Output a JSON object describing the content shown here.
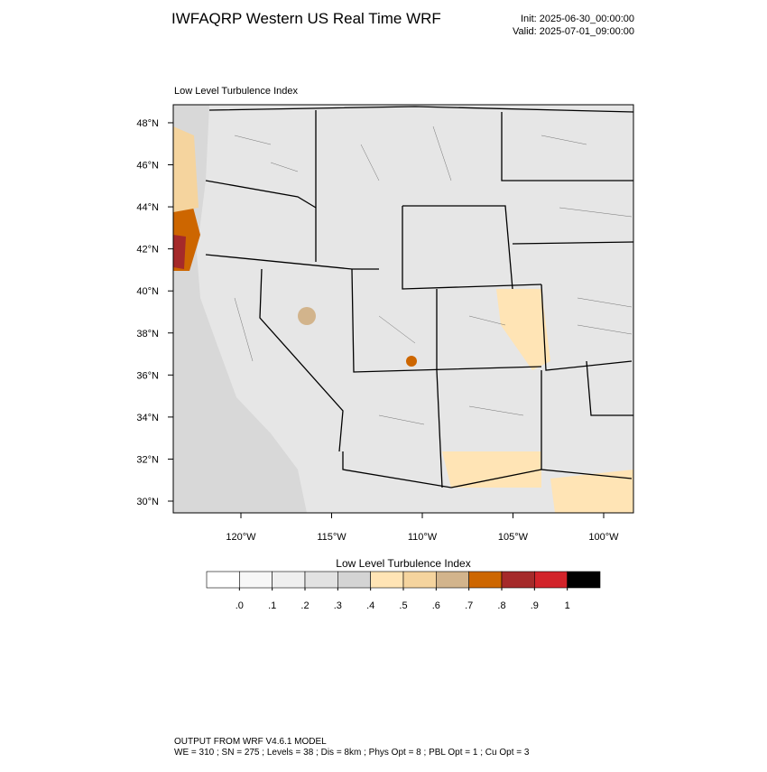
{
  "header": {
    "title": "IWFAQRP Western US Real Time WRF",
    "init": "Init: 2025-06-30_00:00:00",
    "valid": "Valid: 2025-07-01_09:00:00"
  },
  "map": {
    "label": "Low Level Turbulence Index",
    "lat_ticks": [
      {
        "value": 30,
        "label": "30°N"
      },
      {
        "value": 32,
        "label": "32°N"
      },
      {
        "value": 34,
        "label": "34°N"
      },
      {
        "value": 36,
        "label": "36°N"
      },
      {
        "value": 38,
        "label": "38°N"
      },
      {
        "value": 40,
        "label": "40°N"
      },
      {
        "value": 42,
        "label": "42°N"
      },
      {
        "value": 44,
        "label": "44°N"
      },
      {
        "value": 46,
        "label": "46°N"
      },
      {
        "value": 48,
        "label": "48°N"
      }
    ],
    "lon_ticks": [
      {
        "value": -120,
        "label": "120°W"
      },
      {
        "value": -115,
        "label": "115°W"
      },
      {
        "value": -110,
        "label": "110°W"
      },
      {
        "value": -105,
        "label": "105°W"
      },
      {
        "value": -100,
        "label": "100°W"
      }
    ]
  },
  "colorbar": {
    "title": "Low Level Turbulence Index",
    "colors": [
      "#ffffff",
      "#f7f7f7",
      "#efefef",
      "#e2e2e2",
      "#d4d4d4",
      "#ffe4b5",
      "#f5d49e",
      "#d2b48c",
      "#cd6600",
      "#a52a2a",
      "#d2232a",
      "#000000"
    ],
    "ticks": [
      {
        "value": 0,
        "label": ".0"
      },
      {
        "value": 0.1,
        "label": ".1"
      },
      {
        "value": 0.2,
        "label": ".2"
      },
      {
        "value": 0.3,
        "label": ".3"
      },
      {
        "value": 0.4,
        "label": ".4"
      },
      {
        "value": 0.5,
        "label": ".5"
      },
      {
        "value": 0.6,
        "label": ".6"
      },
      {
        "value": 0.7,
        "label": ".7"
      },
      {
        "value": 0.8,
        "label": ".8"
      },
      {
        "value": 0.9,
        "label": ".9"
      },
      {
        "value": 1,
        "label": "1"
      }
    ]
  },
  "footer": {
    "line1": "OUTPUT FROM WRF V4.6.1 MODEL",
    "line2": "WE = 310 ; SN = 275 ; Levels = 38 ; Dis = 8km ; Phys Opt = 8 ; PBL Opt = 1 ; Cu Opt = 3"
  }
}
